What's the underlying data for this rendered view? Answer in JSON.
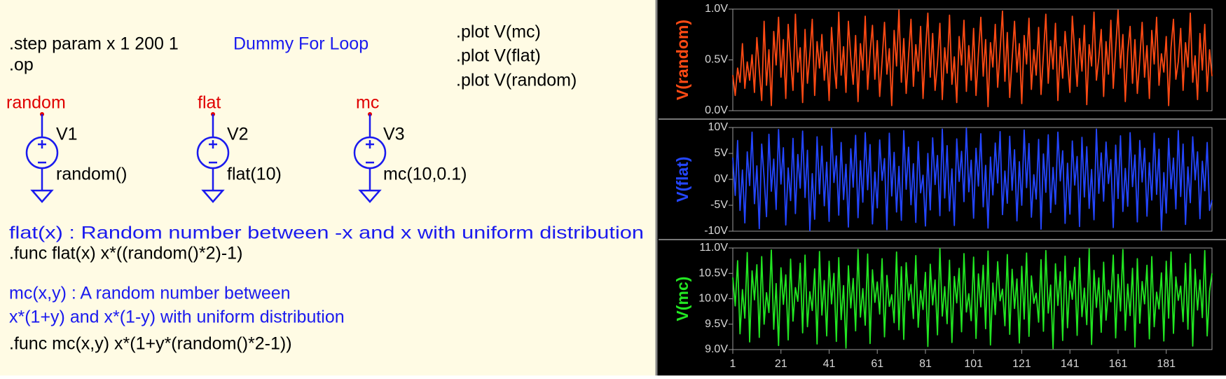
{
  "schematic": {
    "step": ".step param x 1 200 1",
    "comment": "Dummy For Loop",
    "op": ".op",
    "plots": [
      ".plot V(mc)",
      ".plot V(flat)",
      ".plot V(random)"
    ],
    "nets": [
      "random",
      "flat",
      "mc"
    ],
    "sources": [
      {
        "name": "V1",
        "value": "random()"
      },
      {
        "name": "V2",
        "value": "flat(10)"
      },
      {
        "name": "V3",
        "value": "mc(10,0.1)"
      }
    ],
    "notes": [
      "flat(x) : Random number between -x and x with uniform distribution",
      ".func flat(x) x*((random()*2)-1)",
      "mc(x,y) : A random number between",
      "x*(1+y) and x*(1-y) with uniform distribution",
      ".func mc(x,y) x*(1+y*(random()*2-1))"
    ]
  },
  "chart_data": {
    "type": "line",
    "x": [
      1,
      2,
      3,
      4,
      5,
      6,
      7,
      8,
      9,
      10,
      11,
      12,
      13,
      14,
      15,
      16,
      17,
      18,
      19,
      20,
      21,
      22,
      23,
      24,
      25,
      26,
      27,
      28,
      29,
      30,
      31,
      32,
      33,
      34,
      35,
      36,
      37,
      38,
      39,
      40,
      41,
      42,
      43,
      44,
      45,
      46,
      47,
      48,
      49,
      50,
      51,
      52,
      53,
      54,
      55,
      56,
      57,
      58,
      59,
      60,
      61,
      62,
      63,
      64,
      65,
      66,
      67,
      68,
      69,
      70,
      71,
      72,
      73,
      74,
      75,
      76,
      77,
      78,
      79,
      80,
      81,
      82,
      83,
      84,
      85,
      86,
      87,
      88,
      89,
      90,
      91,
      92,
      93,
      94,
      95,
      96,
      97,
      98,
      99,
      100,
      101,
      102,
      103,
      104,
      105,
      106,
      107,
      108,
      109,
      110,
      111,
      112,
      113,
      114,
      115,
      116,
      117,
      118,
      119,
      120,
      121,
      122,
      123,
      124,
      125,
      126,
      127,
      128,
      129,
      130,
      131,
      132,
      133,
      134,
      135,
      136,
      137,
      138,
      139,
      140,
      141,
      142,
      143,
      144,
      145,
      146,
      147,
      148,
      149,
      150,
      151,
      152,
      153,
      154,
      155,
      156,
      157,
      158,
      159,
      160,
      161,
      162,
      163,
      164,
      165,
      166,
      167,
      168,
      169,
      170,
      171,
      172,
      173,
      174,
      175,
      176,
      177,
      178,
      179,
      180,
      181,
      182,
      183,
      184,
      185,
      186,
      187,
      188,
      189,
      190,
      191,
      192,
      193,
      194,
      195,
      196,
      197,
      198,
      199,
      200
    ],
    "xlim": [
      1,
      200
    ],
    "xticks": [
      1,
      21,
      41,
      61,
      81,
      101,
      121,
      141,
      161,
      181
    ],
    "series": [
      {
        "name": "V(random)",
        "color": "#ff4a14",
        "ylim": [
          0,
          1
        ],
        "yticks": [
          {
            "value": 0,
            "label": "0.0V"
          },
          {
            "value": 0.5,
            "label": "0.5V"
          },
          {
            "value": 1,
            "label": "1.0V"
          }
        ],
        "values": [
          0.35,
          0.15,
          0.42,
          0.28,
          0.66,
          0.22,
          0.48,
          0.3,
          0.55,
          0.18,
          0.72,
          0.4,
          0.1,
          0.88,
          0.25,
          0.6,
          0.05,
          0.78,
          0.45,
          0.92,
          0.33,
          0.7,
          0.12,
          0.85,
          0.5,
          0.2,
          0.95,
          0.38,
          0.62,
          0.08,
          0.8,
          0.27,
          0.55,
          0.9,
          0.15,
          0.68,
          0.42,
          0.75,
          0.3,
          0.58,
          0.1,
          0.82,
          0.47,
          0.22,
          0.97,
          0.35,
          0.63,
          0.18,
          0.88,
          0.52,
          0.26,
          0.74,
          0.09,
          0.66,
          0.4,
          0.93,
          0.21,
          0.57,
          0.84,
          0.31,
          0.69,
          0.14,
          0.49,
          0.87,
          0.36,
          0.61,
          0.05,
          0.79,
          0.44,
          0.99,
          0.28,
          0.71,
          0.17,
          0.54,
          0.9,
          0.24,
          0.65,
          0.39,
          0.83,
          0.12,
          0.58,
          0.96,
          0.33,
          0.76,
          0.2,
          0.47,
          0.86,
          0.11,
          0.62,
          0.37,
          0.94,
          0.26,
          0.53,
          0.08,
          0.73,
          0.45,
          0.89,
          0.19,
          0.64,
          0.3,
          0.81,
          0.15,
          0.56,
          0.92,
          0.34,
          0.7,
          0.04,
          0.67,
          0.43,
          0.85,
          0.23,
          0.59,
          0.98,
          0.29,
          0.77,
          0.13,
          0.51,
          0.88,
          0.38,
          0.66,
          0.07,
          0.74,
          0.46,
          0.91,
          0.21,
          0.6,
          0.35,
          0.82,
          0.16,
          0.55,
          0.95,
          0.27,
          0.69,
          0.41,
          0.86,
          0.1,
          0.63,
          0.32,
          0.78,
          0.49,
          0.18,
          0.93,
          0.57,
          0.24,
          0.71,
          0.39,
          0.84,
          0.06,
          0.65,
          0.44,
          0.97,
          0.3,
          0.52,
          0.8,
          0.14,
          0.68,
          0.36,
          0.89,
          0.22,
          0.61,
          0.99,
          0.42,
          0.75,
          0.09,
          0.58,
          0.83,
          0.27,
          0.7,
          0.17,
          0.5,
          0.87,
          0.33,
          0.64,
          0.12,
          0.79,
          0.46,
          0.92,
          0.25,
          0.56,
          0.38,
          0.73,
          0.05,
          0.62,
          0.9,
          0.31,
          0.48,
          0.81,
          0.2,
          0.67,
          0.43,
          0.96,
          0.28,
          0.54,
          0.11,
          0.76,
          0.4,
          0.85,
          0.19,
          0.6,
          0.34
        ]
      },
      {
        "name": "V(flat)",
        "color": "#2446ff",
        "ylim": [
          -10,
          10
        ],
        "yticks": [
          {
            "value": -10,
            "label": "-10V"
          },
          {
            "value": -5,
            "label": "-5V"
          },
          {
            "value": 0,
            "label": "0V"
          },
          {
            "value": 5,
            "label": "5V"
          },
          {
            "value": 10,
            "label": "10V"
          }
        ],
        "values": [
          4.2,
          -3.1,
          7.5,
          -6.0,
          1.8,
          -8.4,
          5.3,
          -1.2,
          9.1,
          -4.7,
          2.6,
          -9.5,
          6.8,
          0.4,
          -7.2,
          8.7,
          -2.3,
          3.9,
          -5.8,
          9.6,
          -0.9,
          6.1,
          -8.8,
          2.2,
          -4.1,
          7.9,
          -6.6,
          4.8,
          -1.7,
          9.3,
          -3.5,
          5.6,
          -9.9,
          1.1,
          -7.7,
          8.2,
          -2.8,
          6.4,
          -5.1,
          3.3,
          -8.1,
          9.8,
          -0.6,
          4.5,
          -6.9,
          7.1,
          -3.9,
          2.9,
          -9.2,
          5.9,
          -1.5,
          8.5,
          -7.4,
          3.6,
          -4.4,
          9.0,
          -2.0,
          6.7,
          -8.6,
          1.4,
          -5.5,
          7.6,
          -0.2,
          4.0,
          -9.7,
          8.9,
          -3.2,
          5.2,
          -6.3,
          2.5,
          -7.9,
          9.4,
          -1.9,
          6.2,
          -4.9,
          3.0,
          -8.3,
          7.3,
          -2.6,
          0.8,
          -9.0,
          5.0,
          -5.9,
          8.0,
          -1.0,
          4.6,
          -7.0,
          9.7,
          -3.6,
          6.5,
          -6.1,
          2.0,
          -8.9,
          7.8,
          -0.4,
          5.4,
          -4.3,
          9.9,
          -2.4,
          3.7,
          -7.5,
          6.0,
          -1.3,
          8.8,
          -5.3,
          2.7,
          -9.4,
          4.3,
          -3.0,
          7.0,
          -0.7,
          9.2,
          -6.8,
          1.6,
          -4.6,
          8.3,
          -2.1,
          5.7,
          -8.0,
          3.4,
          -5.0,
          9.5,
          -1.6,
          6.9,
          -7.3,
          0.9,
          -3.8,
          7.7,
          -9.6,
          4.9,
          -2.5,
          8.6,
          -6.4,
          2.3,
          -4.8,
          9.1,
          -0.3,
          5.5,
          -8.5,
          3.1,
          -6.7,
          7.4,
          -1.1,
          4.4,
          -9.1,
          8.1,
          -3.4,
          6.3,
          -5.6,
          1.9,
          -7.8,
          9.7,
          -2.7,
          5.1,
          -4.2,
          7.2,
          -0.8,
          3.8,
          -9.3,
          6.6,
          -3.7,
          8.4,
          -6.2,
          2.1,
          -5.2,
          9.0,
          -1.4,
          4.7,
          -8.2,
          7.5,
          -0.5,
          6.0,
          -7.1,
          3.2,
          -4.0,
          8.9,
          -2.9,
          5.8,
          -9.8,
          1.3,
          -6.5,
          7.9,
          -1.8,
          4.1,
          -5.7,
          9.4,
          -3.3,
          6.8,
          -8.7,
          2.4,
          -4.5,
          8.2,
          -0.1,
          5.3,
          -7.6,
          3.5,
          -2.2,
          7.1,
          -6.0,
          -4.0
        ]
      },
      {
        "name": "V(mc)",
        "color": "#22e622",
        "ylim": [
          9,
          11
        ],
        "yticks": [
          {
            "value": 9,
            "label": "9.0V"
          },
          {
            "value": 9.5,
            "label": "9.5V"
          },
          {
            "value": 10,
            "label": "10.0V"
          },
          {
            "value": 10.5,
            "label": "10.5V"
          },
          {
            "value": 11,
            "label": "11.0V"
          }
        ],
        "values": [
          10.42,
          9.86,
          10.75,
          9.31,
          10.18,
          9.62,
          10.91,
          9.15,
          10.55,
          9.98,
          10.67,
          9.24,
          10.83,
          9.5,
          10.12,
          9.73,
          10.96,
          9.4,
          10.3,
          9.08,
          10.61,
          9.89,
          10.47,
          9.19,
          10.78,
          9.56,
          10.22,
          9.95,
          10.7,
          9.33,
          10.86,
          9.45,
          10.14,
          9.77,
          10.59,
          9.11,
          10.93,
          9.68,
          10.36,
          9.27,
          10.74,
          9.9,
          10.5,
          9.16,
          10.81,
          9.59,
          10.26,
          9.03,
          10.65,
          9.82,
          10.4,
          9.37,
          10.97,
          9.64,
          10.2,
          9.48,
          10.88,
          9.12,
          10.57,
          9.93,
          10.33,
          9.7,
          10.79,
          9.25,
          10.46,
          9.85,
          10.08,
          9.53,
          10.92,
          9.39,
          10.63,
          9.2,
          10.71,
          9.97,
          10.28,
          9.61,
          10.85,
          9.44,
          10.16,
          9.79,
          10.52,
          9.06,
          10.68,
          9.88,
          10.37,
          9.29,
          10.99,
          9.66,
          10.24,
          9.51,
          10.76,
          9.14,
          10.44,
          9.92,
          10.6,
          9.35,
          10.89,
          9.74,
          10.1,
          9.57,
          10.82,
          9.22,
          10.49,
          9.84,
          10.66,
          9.41,
          10.94,
          9.09,
          10.31,
          9.69,
          10.73,
          9.96,
          10.19,
          9.47,
          10.87,
          9.3,
          10.58,
          9.81,
          10.39,
          9.13,
          10.64,
          9.6,
          10.9,
          9.26,
          10.45,
          9.91,
          10.11,
          9.54,
          10.77,
          9.36,
          10.95,
          9.72,
          10.27,
          9.02,
          10.69,
          9.87,
          10.53,
          9.18,
          10.84,
          9.43,
          10.35,
          9.99,
          10.62,
          9.28,
          10.8,
          9.65,
          10.21,
          9.49,
          10.98,
          9.1,
          10.56,
          9.83,
          10.41,
          9.34,
          10.72,
          9.58,
          10.17,
          9.94,
          10.86,
          9.23,
          10.48,
          9.76,
          10.97,
          9.38,
          10.29,
          9.67,
          10.6,
          9.05,
          10.79,
          9.52,
          10.34,
          9.9,
          10.66,
          9.21,
          10.83,
          9.45,
          10.13,
          9.8,
          10.51,
          9.17,
          10.74,
          9.62,
          10.92,
          9.32,
          10.43,
          9.97,
          10.25,
          9.55,
          10.7,
          9.4,
          10.88,
          9.07,
          10.58,
          9.78,
          10.37,
          9.63,
          10.95,
          9.27,
          10.15,
          10.5
        ]
      }
    ]
  }
}
